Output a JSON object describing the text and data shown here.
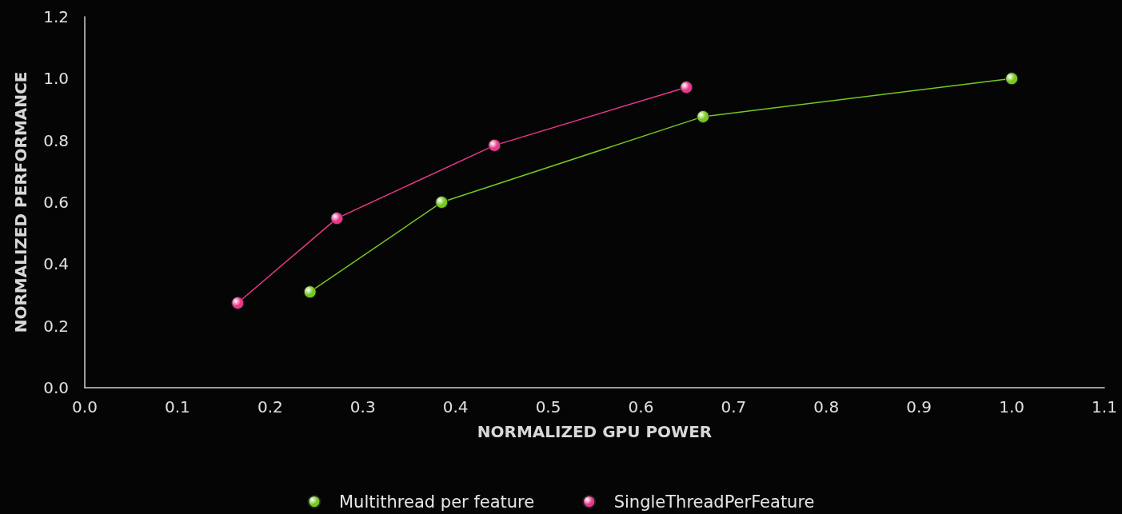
{
  "chart_data": {
    "type": "line",
    "xlabel": "NORMALIZED GPU POWER",
    "ylabel": "NORMALIZED PERFORMANCE",
    "series": [
      {
        "name": "Multithread per feature",
        "color": "#76c81e",
        "x": [
          0.243,
          0.385,
          0.667,
          1.0
        ],
        "values": [
          0.31,
          0.6,
          0.877,
          1.0
        ]
      },
      {
        "name": "SingleThreadPerFeature",
        "color": "#e8388a",
        "x": [
          0.165,
          0.272,
          0.442,
          0.649
        ],
        "values": [
          0.274,
          0.548,
          0.784,
          0.972
        ]
      }
    ],
    "xlim": [
      0,
      1.1
    ],
    "xticks": [
      {
        "value": 0,
        "label": "0.0"
      },
      0.1,
      0.2,
      0.3,
      0.4,
      0.5,
      0.6,
      0.7,
      0.8,
      0.9,
      {
        "value": 1,
        "label": "1.0"
      },
      1.1
    ],
    "ylim": [
      0,
      1.2
    ],
    "yticks": [
      {
        "value": 0,
        "label": "0.0"
      },
      0.2,
      0.4,
      0.6,
      0.8,
      {
        "value": 1,
        "label": "1.0"
      },
      1.2
    ],
    "grid": false,
    "legend": "bottom",
    "marker": "circle",
    "line_style": "solid"
  }
}
